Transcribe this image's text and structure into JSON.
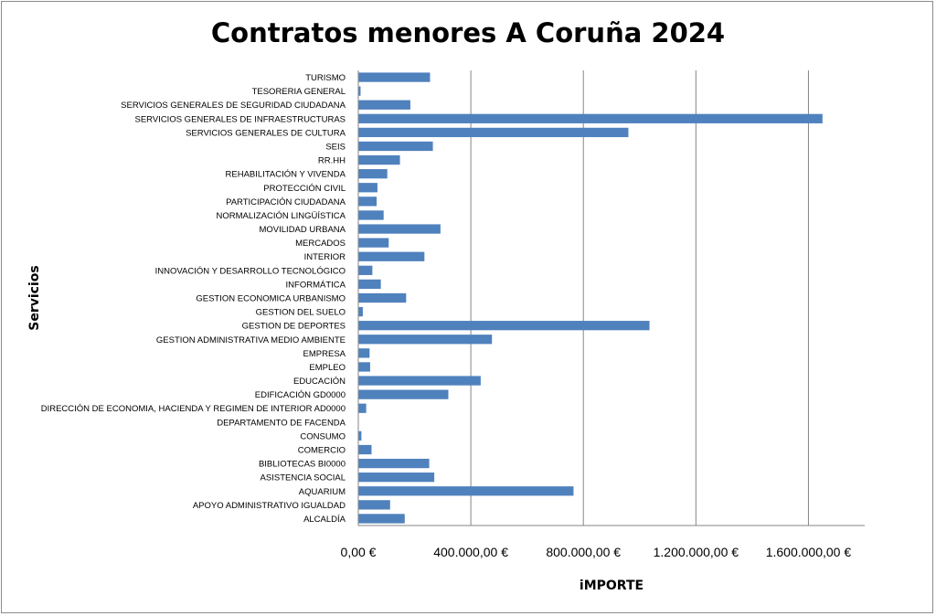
{
  "chart_data": {
    "type": "bar",
    "orientation": "horizontal",
    "title": "Contratos menores A Coruña 2024",
    "xlabel": "iMPORTE",
    "ylabel": "Servicios",
    "xlim": [
      0,
      1800000
    ],
    "xticks": [
      0,
      400000,
      800000,
      1200000,
      1600000
    ],
    "xtick_labels": [
      "0,00 €",
      "400.000,00 €",
      "800.000,00 €",
      "1.200.000,00 €",
      "1.600.000,00 €"
    ],
    "grid": "vertical",
    "bar_color": "#4f81bd",
    "categories": [
      "TURISMO",
      "TESORERIA GENERAL",
      "SERVICIOS GENERALES DE SEGURIDAD CIUDADANA",
      "SERVICIOS GENERALES DE INFRAESTRUCTURAS",
      "SERVICIOS GENERALES DE CULTURA",
      "SEIS",
      "RR.HH",
      "REHABILITACIÓN Y VIVENDA",
      "PROTECCIÓN CIVIL",
      "PARTICIPACIÓN CIUDADANA",
      "NORMALIZACIÓN LINGÜÍSTICA",
      "MOVILIDAD URBANA",
      "MERCADOS",
      "INTERIOR",
      "INNOVACIÓN Y DESARROLLO TECNOLÓGICO",
      "INFORMÁTICA",
      "GESTION ECONOMICA URBANISMO",
      "GESTION DEL SUELO",
      "GESTION DE DEPORTES",
      "GESTION ADMINISTRATIVA MEDIO AMBIENTE",
      "EMPRESA",
      "EMPLEO",
      "EDUCACIÓN",
      "EDIFICACIÓN GD0000",
      "DIRECCIÓN DE ECONOMIA, HACIENDA Y REGIMEN DE INTERIOR AD0000",
      "DEPARTAMENTO DE FACENDA",
      "CONSUMO",
      "COMERCIO",
      "BIBLIOTECAS BI0000",
      "ASISTENCIA SOCIAL",
      "AQUARIUM",
      "APOYO ADMINISTRATIVO IGUALDAD",
      "ALCALDÍA"
    ],
    "values": [
      255000,
      8000,
      185000,
      1650000,
      960000,
      265000,
      148000,
      103000,
      68000,
      65000,
      90000,
      292000,
      108000,
      235000,
      50000,
      80000,
      170000,
      16000,
      1035000,
      475000,
      40000,
      42000,
      435000,
      320000,
      28000,
      1500,
      11000,
      47000,
      252000,
      270000,
      765000,
      113000,
      165000
    ]
  }
}
